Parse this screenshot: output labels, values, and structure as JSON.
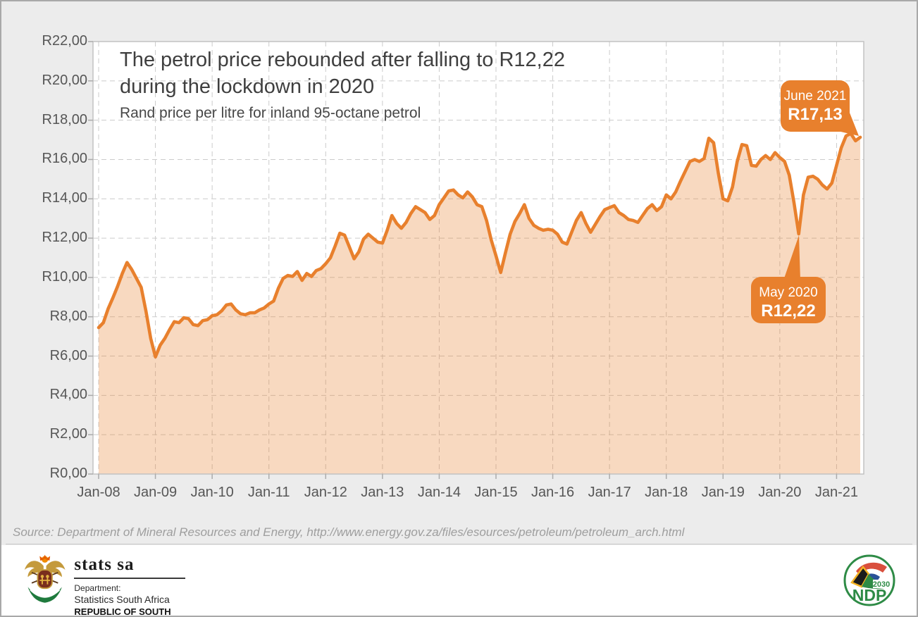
{
  "header": {
    "title_line1": "The petrol price rebounded after falling to R12,22",
    "title_line2": "during the lockdown in 2020",
    "subtitle": "Rand price per litre for inland 95-octane petrol"
  },
  "annotations": {
    "june2021": {
      "label": "June 2021",
      "value": "R17,13"
    },
    "may2020": {
      "label": "May 2020",
      "value": "R12,22"
    }
  },
  "source_line": "Source: Department of Mineral Resources and Energy, http://www.energy.gov.za/files/esources/petroleum/petroleum_arch.html",
  "footer": {
    "statssa": {
      "wordmark": "stats sa",
      "dept": "Department:",
      "line2": "Statistics South Africa",
      "line3": "REPUBLIC OF SOUTH AFRICA"
    },
    "ndp": {
      "label": "NDP",
      "year": "2030"
    }
  },
  "colors": {
    "accent_orange": "#e8802d",
    "area_fill": "rgba(232,128,45,0.30)",
    "grid": "#cbcbcb",
    "frame": "#c2c2c2",
    "tick": "#ababab",
    "plot_background": "#ffffff"
  },
  "chart_data": {
    "type": "area",
    "title": "The petrol price rebounded after falling to R12,22 during the lockdown in 2020",
    "subtitle": "Rand price per litre for inland 95-octane petrol",
    "x_start": "Jan-2008",
    "x_end": "Jun-2021",
    "x_tick_labels": [
      "Jan-08",
      "Jan-09",
      "Jan-10",
      "Jan-11",
      "Jan-12",
      "Jan-13",
      "Jan-14",
      "Jan-15",
      "Jan-16",
      "Jan-17",
      "Jan-18",
      "Jan-19",
      "Jan-20",
      "Jan-21"
    ],
    "y_tick_labels": [
      "R0,00",
      "R2,00",
      "R4,00",
      "R6,00",
      "R8,00",
      "R10,00",
      "R12,00",
      "R14,00",
      "R16,00",
      "R18,00",
      "R20,00",
      "R22,00"
    ],
    "ylim": [
      0,
      22
    ],
    "grid": "dashed",
    "legend": "none",
    "series": [
      {
        "name": "Rand price per litre, inland 95-octane petrol (monthly, Jan 2008 - Jun 2021)",
        "values": [
          7.45,
          7.7,
          8.4,
          8.95,
          9.55,
          10.2,
          10.76,
          10.4,
          9.95,
          9.5,
          8.3,
          6.9,
          5.96,
          6.55,
          6.9,
          7.35,
          7.75,
          7.7,
          7.95,
          7.9,
          7.6,
          7.55,
          7.8,
          7.85,
          8.05,
          8.1,
          8.3,
          8.6,
          8.65,
          8.35,
          8.15,
          8.1,
          8.2,
          8.2,
          8.35,
          8.45,
          8.65,
          8.8,
          9.45,
          9.95,
          10.1,
          10.05,
          10.3,
          9.85,
          10.2,
          10.05,
          10.35,
          10.45,
          10.7,
          11.0,
          11.6,
          12.25,
          12.15,
          11.55,
          10.95,
          11.3,
          11.95,
          12.2,
          12.0,
          11.8,
          11.75,
          12.4,
          13.15,
          12.75,
          12.5,
          12.8,
          13.25,
          13.6,
          13.45,
          13.3,
          12.95,
          13.15,
          13.7,
          14.05,
          14.4,
          14.45,
          14.2,
          14.05,
          14.35,
          14.1,
          13.7,
          13.6,
          12.9,
          11.9,
          11.1,
          10.25,
          11.25,
          12.2,
          12.85,
          13.25,
          13.7,
          13.0,
          12.65,
          12.5,
          12.4,
          12.45,
          12.4,
          12.2,
          11.8,
          11.7,
          12.3,
          12.9,
          13.3,
          12.75,
          12.3,
          12.7,
          13.1,
          13.45,
          13.55,
          13.65,
          13.3,
          13.15,
          12.95,
          12.9,
          12.8,
          13.15,
          13.5,
          13.7,
          13.4,
          13.6,
          14.2,
          14.0,
          14.35,
          14.9,
          15.4,
          15.9,
          16.0,
          15.9,
          16.05,
          17.08,
          16.85,
          15.3,
          14.0,
          13.9,
          14.6,
          15.9,
          16.76,
          16.7,
          15.7,
          15.66,
          16.0,
          16.2,
          16.0,
          16.35,
          16.1,
          15.9,
          15.2,
          13.8,
          12.22,
          14.2,
          15.1,
          15.15,
          15.0,
          14.7,
          14.5,
          14.8,
          15.7,
          16.6,
          17.2,
          17.32,
          16.95,
          17.13
        ]
      }
    ],
    "annotations": [
      {
        "x": "Jun-2021",
        "y": 17.13,
        "text": "June 2021 R17,13"
      },
      {
        "x": "May-2020",
        "y": 12.22,
        "text": "May 2020 R12,22"
      }
    ]
  }
}
